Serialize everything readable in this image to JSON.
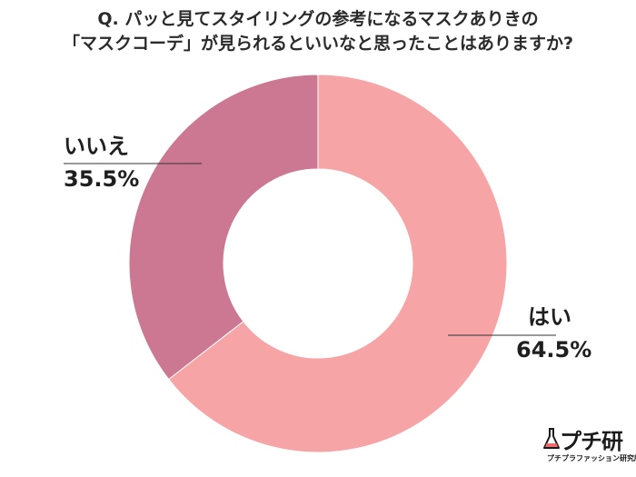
{
  "title": {
    "line1": "Q. パッと見てスタイリングの参考になるマスクありきの",
    "line2": "「マスクコーデ」が見られるといいなと思ったことはありますか?"
  },
  "chart_data": {
    "type": "pie",
    "donut": true,
    "categories": [
      "はい",
      "いいえ"
    ],
    "values": [
      64.5,
      35.5
    ],
    "value_labels": [
      "64.5%",
      "35.5%"
    ],
    "colors": [
      "#f7a4a6",
      "#cc7892"
    ]
  },
  "logo": {
    "name": "プチ研",
    "subtitle": "プチプラファッション研究所"
  }
}
